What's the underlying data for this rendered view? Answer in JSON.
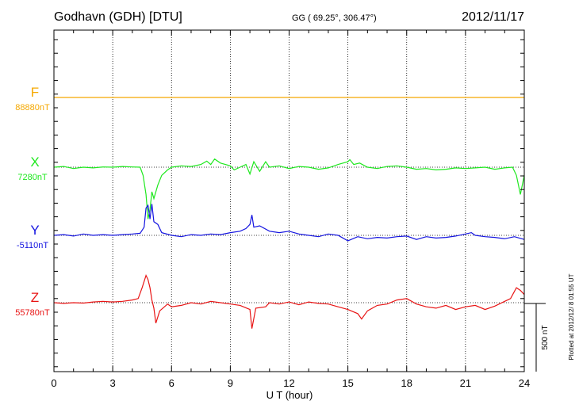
{
  "header": {
    "station": "Godhavn (GDH)  [DTU]",
    "coords": "GG ( 69.25°, 306.47°)",
    "date": "2012/11/17"
  },
  "side_note": "Plotted at 2012/12/ 8 01:55 UT",
  "chart_data": {
    "type": "line",
    "xlabel": "U T (hour)",
    "xlim": [
      0,
      24
    ],
    "xticks": [
      0,
      3,
      6,
      9,
      12,
      15,
      18,
      21,
      24
    ],
    "scale_bar": {
      "label": "500 nT",
      "value_nT": 500
    },
    "grid": true,
    "series": [
      {
        "name": "F",
        "baseline_label": "88880nT",
        "baseline": 88880,
        "color": "#f5a800",
        "points": [
          [
            0,
            0
          ],
          [
            24,
            0
          ]
        ]
      },
      {
        "name": "X",
        "baseline_label": "7280nT",
        "baseline": 7280,
        "color": "#1ee81e",
        "points": [
          [
            0,
            0
          ],
          [
            0.5,
            5
          ],
          [
            1,
            -10
          ],
          [
            1.5,
            0
          ],
          [
            2,
            -5
          ],
          [
            2.5,
            2
          ],
          [
            3,
            0
          ],
          [
            3.5,
            5
          ],
          [
            4,
            2
          ],
          [
            4.4,
            0
          ],
          [
            4.55,
            -60
          ],
          [
            4.7,
            -200
          ],
          [
            4.8,
            -380
          ],
          [
            4.9,
            -310
          ],
          [
            5.0,
            -180
          ],
          [
            5.1,
            -230
          ],
          [
            5.3,
            -130
          ],
          [
            5.5,
            -60
          ],
          [
            5.8,
            -20
          ],
          [
            6,
            0
          ],
          [
            6.5,
            10
          ],
          [
            7,
            5
          ],
          [
            7.5,
            20
          ],
          [
            7.8,
            45
          ],
          [
            8,
            20
          ],
          [
            8.2,
            60
          ],
          [
            8.5,
            30
          ],
          [
            9,
            10
          ],
          [
            9.2,
            -20
          ],
          [
            9.5,
            0
          ],
          [
            9.8,
            20
          ],
          [
            10,
            -50
          ],
          [
            10.2,
            40
          ],
          [
            10.5,
            -30
          ],
          [
            10.8,
            40
          ],
          [
            11,
            0
          ],
          [
            11.5,
            10
          ],
          [
            12,
            -10
          ],
          [
            12.5,
            5
          ],
          [
            13,
            0
          ],
          [
            13.5,
            -15
          ],
          [
            14,
            -5
          ],
          [
            14.5,
            20
          ],
          [
            15,
            40
          ],
          [
            15.1,
            55
          ],
          [
            15.3,
            20
          ],
          [
            15.6,
            30
          ],
          [
            16,
            0
          ],
          [
            16.5,
            -10
          ],
          [
            17,
            5
          ],
          [
            17.5,
            10
          ],
          [
            18,
            0
          ],
          [
            18.5,
            -15
          ],
          [
            19,
            -10
          ],
          [
            19.5,
            -20
          ],
          [
            20,
            -15
          ],
          [
            20.5,
            -5
          ],
          [
            21,
            -10
          ],
          [
            21.5,
            -5
          ],
          [
            22,
            0
          ],
          [
            22.5,
            -15
          ],
          [
            23,
            -5
          ],
          [
            23.4,
            0
          ],
          [
            23.6,
            -60
          ],
          [
            23.8,
            -200
          ],
          [
            24,
            -60
          ]
        ]
      },
      {
        "name": "Y",
        "baseline_label": "-5110nT",
        "baseline": -5110,
        "color": "#1414e0",
        "points": [
          [
            0,
            0
          ],
          [
            0.5,
            5
          ],
          [
            1,
            -5
          ],
          [
            1.5,
            10
          ],
          [
            2,
            0
          ],
          [
            2.5,
            5
          ],
          [
            3,
            0
          ],
          [
            3.5,
            5
          ],
          [
            4,
            10
          ],
          [
            4.4,
            15
          ],
          [
            4.6,
            60
          ],
          [
            4.7,
            200
          ],
          [
            4.8,
            220
          ],
          [
            4.9,
            120
          ],
          [
            5.0,
            230
          ],
          [
            5.1,
            100
          ],
          [
            5.3,
            80
          ],
          [
            5.5,
            20
          ],
          [
            6,
            0
          ],
          [
            6.5,
            -10
          ],
          [
            7,
            5
          ],
          [
            7.5,
            0
          ],
          [
            8,
            10
          ],
          [
            8.5,
            5
          ],
          [
            9,
            20
          ],
          [
            9.5,
            30
          ],
          [
            9.8,
            50
          ],
          [
            10,
            80
          ],
          [
            10.1,
            150
          ],
          [
            10.2,
            60
          ],
          [
            10.5,
            70
          ],
          [
            11,
            30
          ],
          [
            11.5,
            20
          ],
          [
            12,
            30
          ],
          [
            12.5,
            10
          ],
          [
            13,
            0
          ],
          [
            13.5,
            -10
          ],
          [
            14,
            10
          ],
          [
            14.5,
            0
          ],
          [
            15,
            -40
          ],
          [
            15.5,
            -10
          ],
          [
            16,
            -25
          ],
          [
            16.5,
            -15
          ],
          [
            17,
            -20
          ],
          [
            17.5,
            -10
          ],
          [
            18,
            -5
          ],
          [
            18.5,
            -30
          ],
          [
            19,
            -10
          ],
          [
            19.5,
            -20
          ],
          [
            20,
            -15
          ],
          [
            20.5,
            -5
          ],
          [
            21,
            10
          ],
          [
            21.3,
            20
          ],
          [
            21.5,
            0
          ],
          [
            22,
            -10
          ],
          [
            22.5,
            -15
          ],
          [
            23,
            -25
          ],
          [
            23.5,
            -10
          ],
          [
            24,
            -30
          ]
        ]
      },
      {
        "name": "Z",
        "baseline_label": "55780nT",
        "baseline": 55780,
        "color": "#e81414",
        "points": [
          [
            0,
            0
          ],
          [
            0.5,
            -5
          ],
          [
            1,
            0
          ],
          [
            1.5,
            -3
          ],
          [
            2,
            5
          ],
          [
            2.5,
            10
          ],
          [
            3,
            5
          ],
          [
            3.5,
            10
          ],
          [
            4,
            20
          ],
          [
            4.3,
            30
          ],
          [
            4.5,
            110
          ],
          [
            4.7,
            200
          ],
          [
            4.8,
            170
          ],
          [
            4.9,
            110
          ],
          [
            5.0,
            20
          ],
          [
            5.1,
            -40
          ],
          [
            5.2,
            -150
          ],
          [
            5.4,
            -60
          ],
          [
            5.8,
            -10
          ],
          [
            6,
            -30
          ],
          [
            6.5,
            -20
          ],
          [
            7,
            0
          ],
          [
            7.5,
            -10
          ],
          [
            8,
            10
          ],
          [
            8.5,
            0
          ],
          [
            9,
            -10
          ],
          [
            9.5,
            -20
          ],
          [
            10,
            -50
          ],
          [
            10.1,
            -190
          ],
          [
            10.3,
            -40
          ],
          [
            10.8,
            -30
          ],
          [
            11,
            0
          ],
          [
            11.5,
            -10
          ],
          [
            12,
            5
          ],
          [
            12.5,
            -15
          ],
          [
            13,
            5
          ],
          [
            13.5,
            -5
          ],
          [
            14,
            -10
          ],
          [
            14.5,
            -30
          ],
          [
            15,
            -50
          ],
          [
            15.5,
            -80
          ],
          [
            15.7,
            -120
          ],
          [
            16,
            -60
          ],
          [
            16.5,
            -20
          ],
          [
            17,
            -10
          ],
          [
            17.5,
            20
          ],
          [
            18,
            30
          ],
          [
            18.5,
            -10
          ],
          [
            19,
            -30
          ],
          [
            19.5,
            -40
          ],
          [
            20,
            -20
          ],
          [
            20.5,
            -50
          ],
          [
            21,
            -30
          ],
          [
            21.5,
            -20
          ],
          [
            22,
            -50
          ],
          [
            22.5,
            -25
          ],
          [
            23,
            10
          ],
          [
            23.3,
            30
          ],
          [
            23.6,
            110
          ],
          [
            23.8,
            90
          ],
          [
            24,
            60
          ]
        ]
      }
    ]
  }
}
